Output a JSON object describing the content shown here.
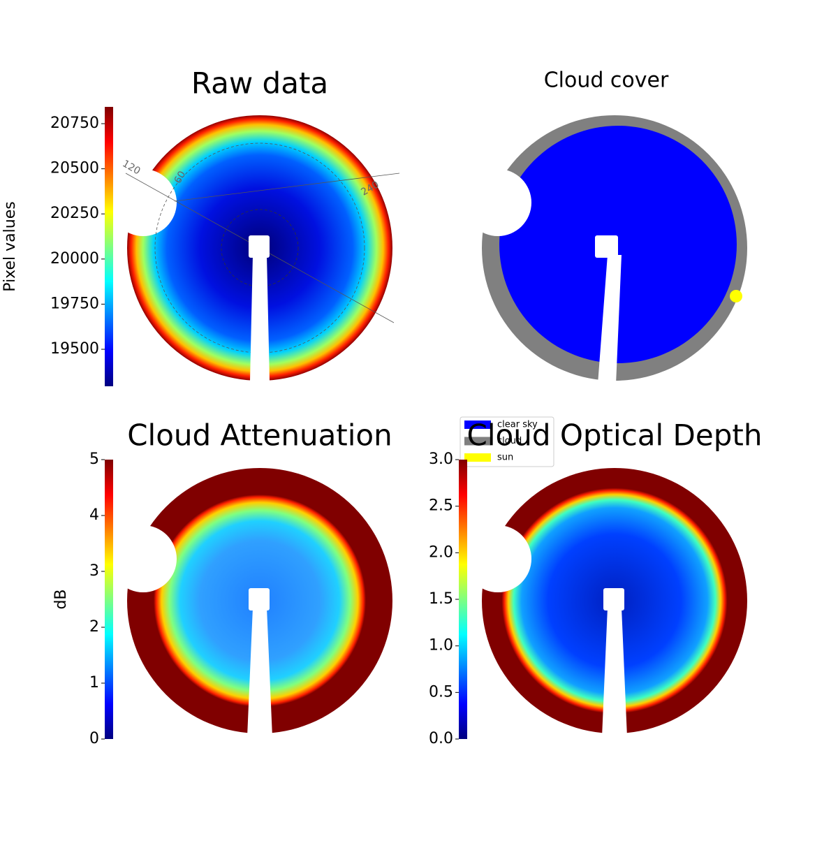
{
  "chart_data": [
    {
      "type": "image",
      "title": "Raw data",
      "colormap": "jet",
      "colorbar_label": "Pixel values",
      "clim": [
        19295,
        20843
      ],
      "cticks": [
        19500,
        19750,
        20000,
        20250,
        20500,
        20750
      ],
      "polar_labels": [
        "120",
        "60",
        "240"
      ]
    },
    {
      "type": "category-image",
      "title": "Cloud cover",
      "legend": [
        {
          "name": "clear sky",
          "color": "#0000ff"
        },
        {
          "name": "cloud",
          "color": "#808080"
        },
        {
          "name": "sun",
          "color": "#ffff00"
        }
      ]
    },
    {
      "type": "image",
      "title": "Cloud Attenuation",
      "colormap": "jet",
      "colorbar_label": "dB",
      "clim": [
        0,
        5
      ],
      "cticks": [
        0,
        1,
        2,
        3,
        4,
        5
      ]
    },
    {
      "type": "image",
      "title": "Cloud Optical Depth",
      "colormap": "jet",
      "clim": [
        0,
        3
      ],
      "cticks": [
        {
          "value": 0,
          "label": "0.0"
        },
        {
          "value": 0.5,
          "label": "0.5"
        },
        {
          "value": 1,
          "label": "1.0"
        },
        {
          "value": 1.5,
          "label": "1.5"
        },
        {
          "value": 2,
          "label": "2.0"
        },
        {
          "value": 2.5,
          "label": "2.5"
        },
        {
          "value": 3,
          "label": "3.0"
        }
      ]
    }
  ]
}
